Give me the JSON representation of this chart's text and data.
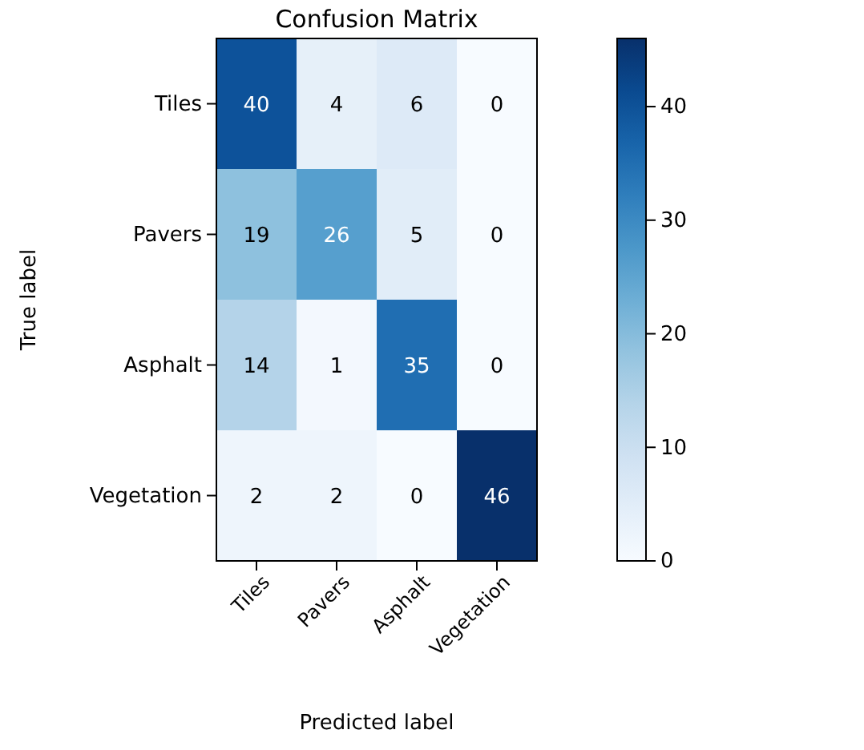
{
  "chart_data": {
    "type": "heatmap",
    "title": "Confusion Matrix",
    "xlabel": "Predicted label",
    "ylabel": "True label",
    "categories": [
      "Tiles",
      "Pavers",
      "Asphalt",
      "Vegetation"
    ],
    "y_categories": [
      "Tiles",
      "Pavers",
      "Asphalt",
      "Vegetation"
    ],
    "cells": [
      [
        40,
        4,
        6,
        0
      ],
      [
        19,
        26,
        5,
        0
      ],
      [
        14,
        1,
        35,
        0
      ],
      [
        2,
        2,
        0,
        46
      ]
    ],
    "clim": [
      0,
      46
    ],
    "cticks": [
      0,
      10,
      20,
      30,
      40
    ],
    "data_labels": true,
    "grid": false
  }
}
